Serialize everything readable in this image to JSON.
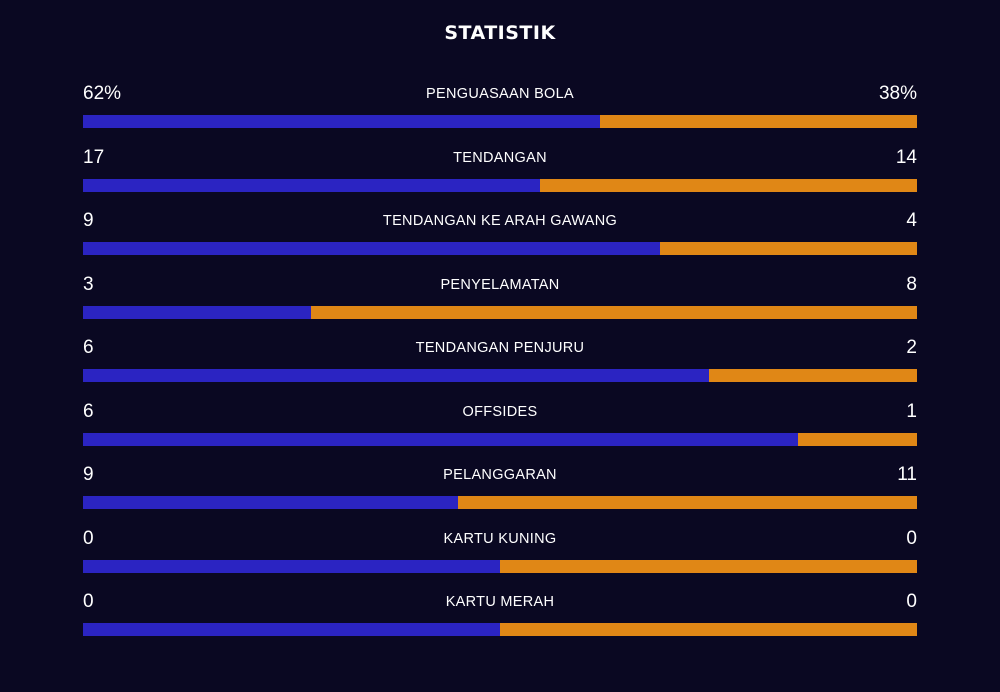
{
  "header": {
    "title": "STATISTIK"
  },
  "colors": {
    "background": "#0a0822",
    "home_bar": "#2b24c2",
    "away_bar": "#e08716",
    "text": "#ffffff"
  },
  "stats": [
    {
      "label": "PENGUASAAN BOLA",
      "home": "62%",
      "away": "38%",
      "home_share": 0.62
    },
    {
      "label": "TENDANGAN",
      "home": "17",
      "away": "14",
      "home_share": 0.548
    },
    {
      "label": "TENDANGAN KE ARAH GAWANG",
      "home": "9",
      "away": "4",
      "home_share": 0.692
    },
    {
      "label": "PENYELAMATAN",
      "home": "3",
      "away": "8",
      "home_share": 0.273
    },
    {
      "label": "TENDANGAN PENJURU",
      "home": "6",
      "away": "2",
      "home_share": 0.75
    },
    {
      "label": "OFFSIDES",
      "home": "6",
      "away": "1",
      "home_share": 0.857
    },
    {
      "label": "PELANGGARAN",
      "home": "9",
      "away": "11",
      "home_share": 0.45
    },
    {
      "label": "KARTU KUNING",
      "home": "0",
      "away": "0",
      "home_share": 0.5
    },
    {
      "label": "KARTU MERAH",
      "home": "0",
      "away": "0",
      "home_share": 0.5
    }
  ]
}
